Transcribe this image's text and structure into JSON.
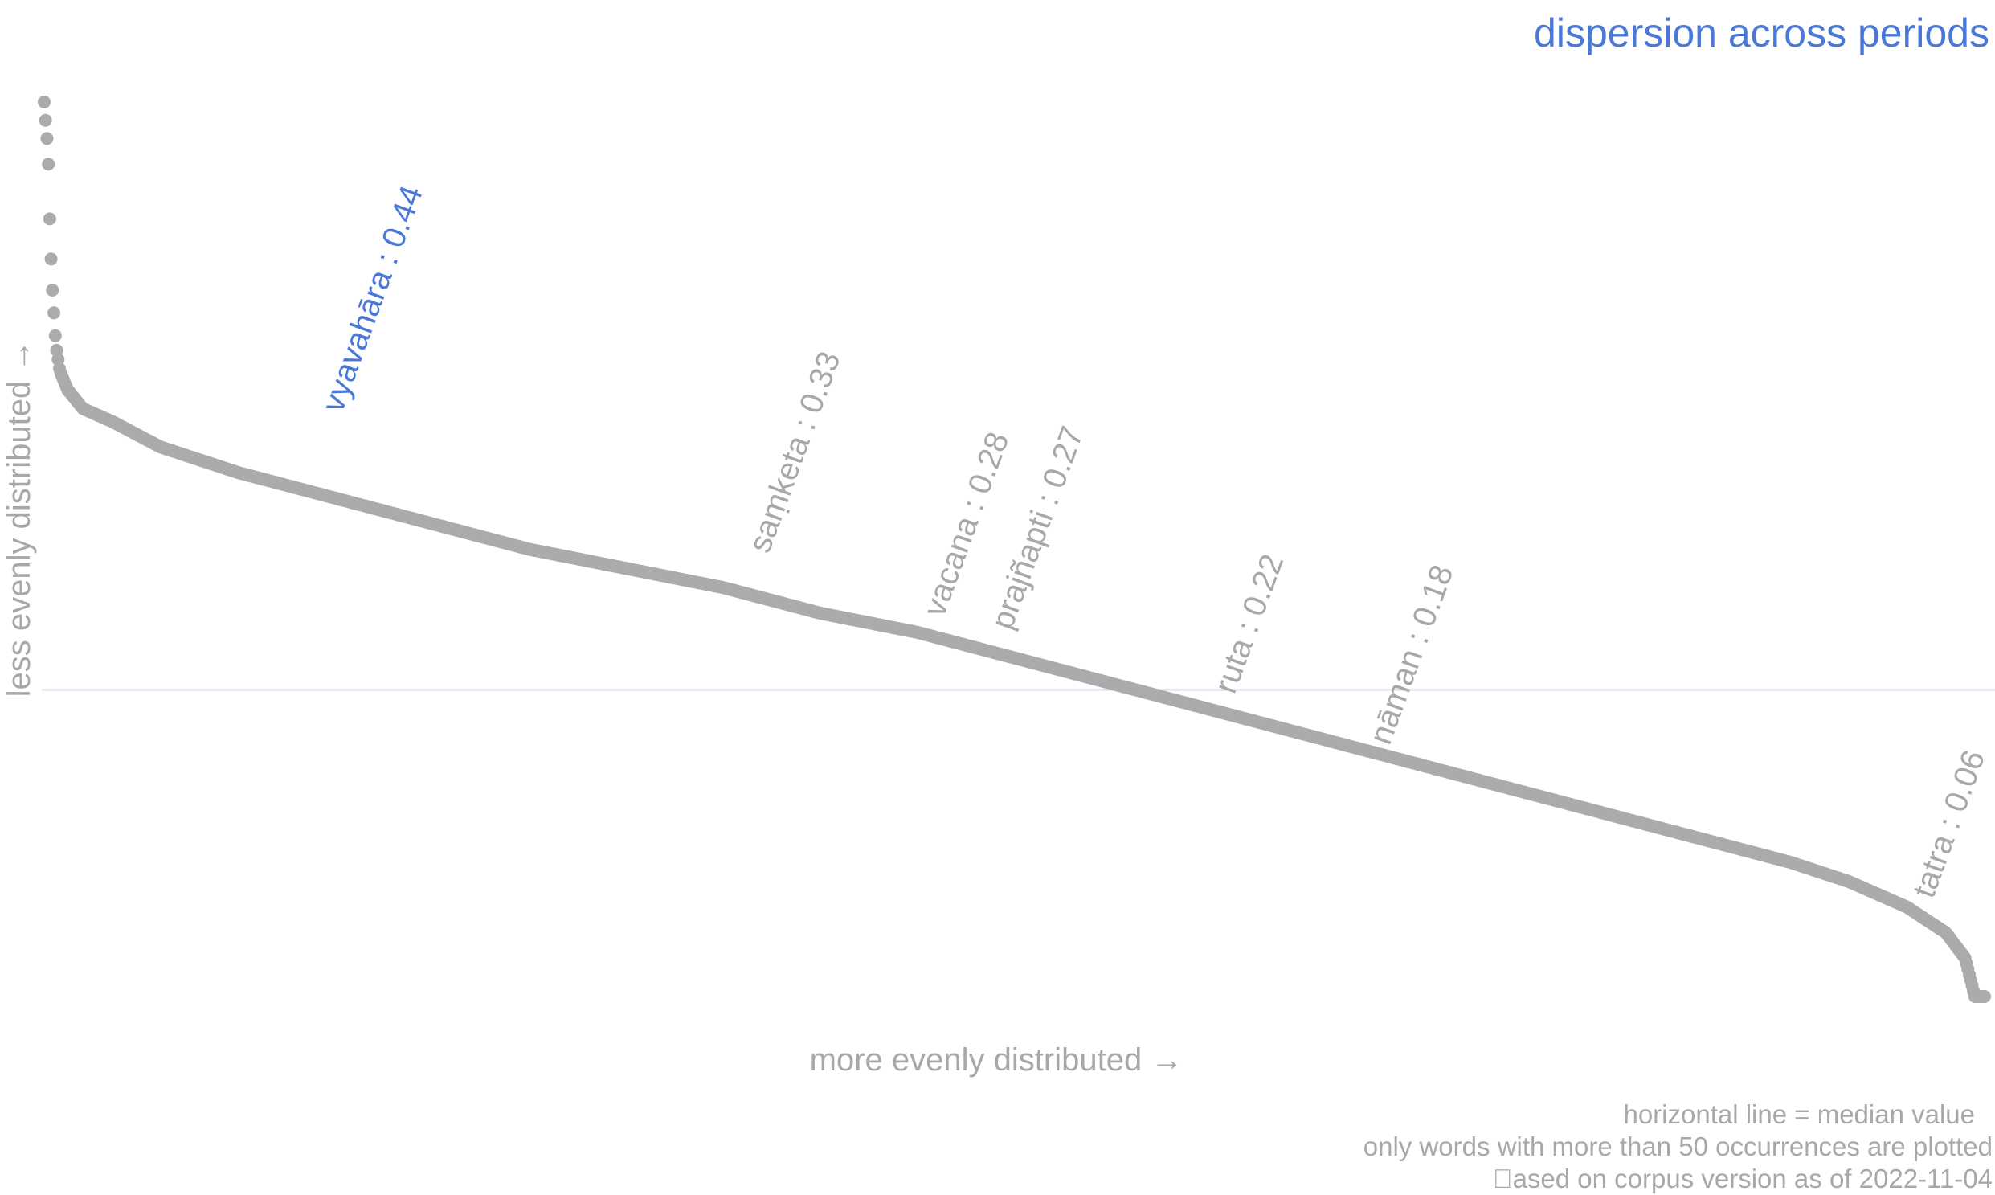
{
  "colors": {
    "accent": "#4a78d8",
    "points": "#ababab",
    "muted_text": "#a8a8a8",
    "median_line": "#dde8f6"
  },
  "chart_data": {
    "type": "scatter",
    "title": "dispersion across periods",
    "xlabel": "more evenly distributed →",
    "ylabel": "less evenly distributed →",
    "y_scale": "dispersion index",
    "ylim": [
      0,
      0.7
    ],
    "grid": false,
    "legend": "none",
    "median": 0.24,
    "series": [
      {
        "values_by_rank_fraction": [
          [
            0.0,
            0.7
          ],
          [
            0.002,
            0.66
          ],
          [
            0.003,
            0.6
          ],
          [
            0.004,
            0.56
          ],
          [
            0.006,
            0.51
          ],
          [
            0.008,
            0.49
          ],
          [
            0.012,
            0.475
          ],
          [
            0.02,
            0.46
          ],
          [
            0.035,
            0.45
          ],
          [
            0.06,
            0.43
          ],
          [
            0.1,
            0.41
          ],
          [
            0.15,
            0.39
          ],
          [
            0.2,
            0.37
          ],
          [
            0.25,
            0.35
          ],
          [
            0.3,
            0.335
          ],
          [
            0.35,
            0.32
          ],
          [
            0.4,
            0.3
          ],
          [
            0.45,
            0.285
          ],
          [
            0.5,
            0.265
          ],
          [
            0.55,
            0.245
          ],
          [
            0.6,
            0.225
          ],
          [
            0.65,
            0.205
          ],
          [
            0.7,
            0.185
          ],
          [
            0.75,
            0.165
          ],
          [
            0.8,
            0.145
          ],
          [
            0.85,
            0.125
          ],
          [
            0.9,
            0.105
          ],
          [
            0.93,
            0.09
          ],
          [
            0.96,
            0.07
          ],
          [
            0.98,
            0.05
          ],
          [
            0.99,
            0.03
          ],
          [
            0.995,
            0.0
          ],
          [
            1.0,
            0.0
          ]
        ]
      }
    ],
    "highlighted_words": [
      {
        "label": "vyavahāra : 0.44",
        "x": 0.15,
        "y": 0.44,
        "highlight": true
      },
      {
        "label": "saṃketa : 0.33",
        "x": 0.37,
        "y": 0.33,
        "highlight": false
      },
      {
        "label": "vacana : 0.28",
        "x": 0.46,
        "y": 0.28,
        "highlight": false
      },
      {
        "label": "prajñapti : 0.27",
        "x": 0.495,
        "y": 0.27,
        "highlight": false
      },
      {
        "label": "ruta : 0.22",
        "x": 0.61,
        "y": 0.22,
        "highlight": false
      },
      {
        "label": "nāman : 0.18",
        "x": 0.69,
        "y": 0.18,
        "highlight": false
      },
      {
        "label": "tatra : 0.06",
        "x": 0.97,
        "y": 0.06,
        "highlight": false
      }
    ],
    "notes": [
      "horizontal line = median value",
      "only words with more than 50 occurrences are plotted",
      "ased on corpus version as of 2022-11-04"
    ]
  }
}
